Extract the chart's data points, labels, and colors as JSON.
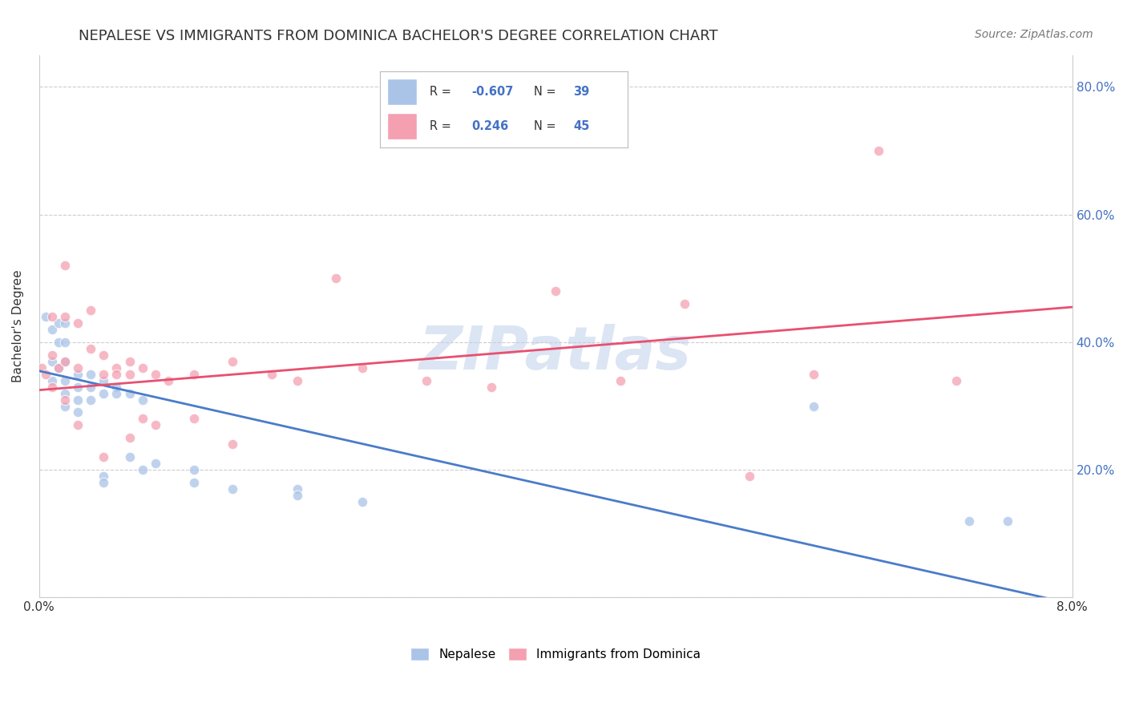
{
  "title": "NEPALESE VS IMMIGRANTS FROM DOMINICA BACHELOR'S DEGREE CORRELATION CHART",
  "source": "Source: ZipAtlas.com",
  "ylabel": "Bachelor's Degree",
  "watermark": "ZIPatlas",
  "xlim": [
    0.0,
    0.08
  ],
  "ylim": [
    0.0,
    0.85
  ],
  "x_ticks": [
    0.0,
    0.01,
    0.02,
    0.03,
    0.04,
    0.05,
    0.06,
    0.07,
    0.08
  ],
  "x_tick_labels": [
    "0.0%",
    "",
    "",
    "",
    "",
    "",
    "",
    "",
    "8.0%"
  ],
  "y_ticks": [
    0.0,
    0.2,
    0.4,
    0.6,
    0.8
  ],
  "y_tick_labels_right": [
    "",
    "20.0%",
    "40.0%",
    "60.0%",
    "80.0%"
  ],
  "color_blue": "#aac4e8",
  "color_pink": "#f4a0b0",
  "line_color_blue": "#4a7cc9",
  "line_color_pink": "#e85070",
  "legend_label1": "Nepalese",
  "legend_label2": "Immigrants from Dominica",
  "nepalese_x": [
    0.0005,
    0.001,
    0.001,
    0.001,
    0.0015,
    0.0015,
    0.0015,
    0.002,
    0.002,
    0.002,
    0.002,
    0.002,
    0.002,
    0.003,
    0.003,
    0.003,
    0.003,
    0.004,
    0.004,
    0.004,
    0.005,
    0.005,
    0.005,
    0.005,
    0.006,
    0.006,
    0.007,
    0.007,
    0.008,
    0.008,
    0.009,
    0.012,
    0.012,
    0.015,
    0.02,
    0.02,
    0.025,
    0.06,
    0.072,
    0.075
  ],
  "nepalese_y": [
    0.44,
    0.42,
    0.37,
    0.34,
    0.43,
    0.4,
    0.36,
    0.43,
    0.4,
    0.37,
    0.34,
    0.32,
    0.3,
    0.35,
    0.33,
    0.31,
    0.29,
    0.35,
    0.33,
    0.31,
    0.34,
    0.32,
    0.19,
    0.18,
    0.33,
    0.32,
    0.32,
    0.22,
    0.31,
    0.2,
    0.21,
    0.2,
    0.18,
    0.17,
    0.17,
    0.16,
    0.15,
    0.3,
    0.12,
    0.12
  ],
  "dominica_x": [
    0.0002,
    0.0005,
    0.001,
    0.001,
    0.001,
    0.0015,
    0.002,
    0.002,
    0.002,
    0.002,
    0.003,
    0.003,
    0.003,
    0.004,
    0.004,
    0.005,
    0.005,
    0.005,
    0.006,
    0.006,
    0.007,
    0.007,
    0.007,
    0.008,
    0.008,
    0.009,
    0.009,
    0.01,
    0.012,
    0.012,
    0.015,
    0.015,
    0.018,
    0.02,
    0.023,
    0.025,
    0.03,
    0.035,
    0.04,
    0.045,
    0.05,
    0.055,
    0.06,
    0.065,
    0.071
  ],
  "dominica_y": [
    0.36,
    0.35,
    0.44,
    0.38,
    0.33,
    0.36,
    0.52,
    0.44,
    0.37,
    0.31,
    0.43,
    0.36,
    0.27,
    0.45,
    0.39,
    0.38,
    0.35,
    0.22,
    0.36,
    0.35,
    0.37,
    0.35,
    0.25,
    0.36,
    0.28,
    0.35,
    0.27,
    0.34,
    0.35,
    0.28,
    0.37,
    0.24,
    0.35,
    0.34,
    0.5,
    0.36,
    0.34,
    0.33,
    0.48,
    0.34,
    0.46,
    0.19,
    0.35,
    0.7,
    0.34
  ],
  "blue_line_x": [
    0.0,
    0.08
  ],
  "blue_line_y": [
    0.355,
    -0.01
  ],
  "pink_line_x": [
    0.0,
    0.08
  ],
  "pink_line_y": [
    0.325,
    0.455
  ],
  "background_color": "#ffffff",
  "grid_color": "#cccccc",
  "title_fontsize": 13,
  "axis_label_fontsize": 11,
  "tick_fontsize": 11,
  "marker_size": 80
}
